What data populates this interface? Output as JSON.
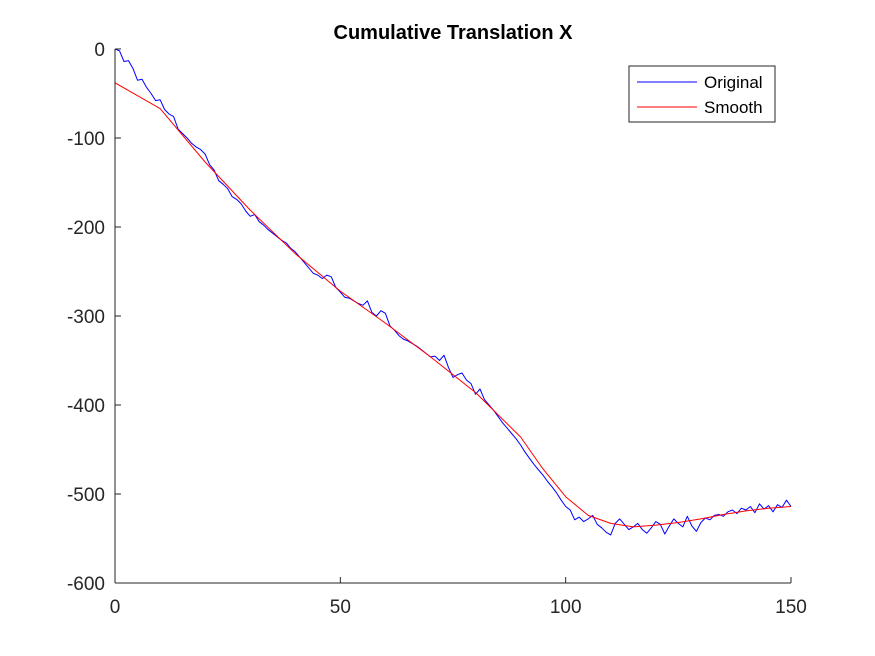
{
  "chart_data": {
    "type": "line",
    "title": "Cumulative Translation X",
    "xlabel": "",
    "ylabel": "",
    "xlim": [
      0,
      150
    ],
    "ylim": [
      -600,
      0
    ],
    "xticks": [
      0,
      50,
      100,
      150
    ],
    "yticks": [
      0,
      -100,
      -200,
      -300,
      -400,
      -500,
      -600
    ],
    "grid": false,
    "legend_location": "top-right",
    "series": [
      {
        "name": "Original",
        "color": "#0000ff",
        "x": [
          0,
          1,
          2,
          3,
          4,
          5,
          6,
          7,
          8,
          9,
          10,
          11,
          12,
          13,
          14,
          15,
          16,
          17,
          18,
          19,
          20,
          21,
          22,
          23,
          24,
          25,
          26,
          27,
          28,
          29,
          30,
          31,
          32,
          33,
          34,
          35,
          36,
          37,
          38,
          39,
          40,
          41,
          42,
          43,
          44,
          45,
          46,
          47,
          48,
          49,
          50,
          51,
          52,
          53,
          54,
          55,
          56,
          57,
          58,
          59,
          60,
          61,
          62,
          63,
          64,
          65,
          66,
          67,
          68,
          69,
          70,
          71,
          72,
          73,
          74,
          75,
          76,
          77,
          78,
          79,
          80,
          81,
          82,
          83,
          84,
          85,
          86,
          87,
          88,
          89,
          90,
          91,
          92,
          93,
          94,
          95,
          96,
          97,
          98,
          99,
          100,
          101,
          102,
          103,
          104,
          105,
          106,
          107,
          108,
          109,
          110,
          111,
          112,
          113,
          114,
          115,
          116,
          117,
          118,
          119,
          120,
          121,
          122,
          123,
          124,
          125,
          126,
          127,
          128,
          129,
          130,
          131,
          132,
          133,
          134,
          135,
          136,
          137,
          138,
          139,
          140,
          141,
          142,
          143,
          144,
          145,
          146,
          147,
          148,
          149,
          150
        ],
        "y": [
          0,
          -2,
          -14,
          -13,
          -22,
          -35,
          -34,
          -43,
          -50,
          -58,
          -57,
          -68,
          -73,
          -76,
          -90,
          -95,
          -100,
          -106,
          -110,
          -113,
          -118,
          -130,
          -136,
          -148,
          -152,
          -157,
          -166,
          -169,
          -174,
          -182,
          -188,
          -186,
          -194,
          -198,
          -203,
          -207,
          -211,
          -215,
          -218,
          -224,
          -228,
          -234,
          -240,
          -246,
          -252,
          -254,
          -258,
          -254,
          -256,
          -268,
          -273,
          -279,
          -280,
          -283,
          -286,
          -288,
          -283,
          -296,
          -300,
          -294,
          -297,
          -311,
          -316,
          -322,
          -326,
          -328,
          -331,
          -334,
          -338,
          -342,
          -346,
          -345,
          -350,
          -344,
          -358,
          -369,
          -366,
          -364,
          -372,
          -376,
          -388,
          -382,
          -394,
          -400,
          -406,
          -413,
          -420,
          -426,
          -432,
          -438,
          -445,
          -453,
          -460,
          -467,
          -473,
          -479,
          -486,
          -492,
          -499,
          -507,
          -514,
          -518,
          -529,
          -526,
          -531,
          -528,
          -524,
          -534,
          -538,
          -543,
          -546,
          -533,
          -528,
          -534,
          -540,
          -537,
          -533,
          -540,
          -544,
          -538,
          -531,
          -534,
          -545,
          -536,
          -528,
          -533,
          -537,
          -525,
          -536,
          -542,
          -532,
          -527,
          -529,
          -524,
          -523,
          -525,
          -520,
          -518,
          -522,
          -516,
          -518,
          -514,
          -521,
          -511,
          -517,
          -513,
          -520,
          -512,
          -515,
          -507,
          -514
        ]
      },
      {
        "name": "Smooth",
        "color": "#ff0000",
        "x": [
          0,
          10,
          20,
          30,
          40,
          50,
          60,
          70,
          80,
          90,
          95,
          100,
          105,
          110,
          115,
          120,
          125,
          130,
          135,
          140,
          145,
          150
        ],
        "y": [
          -38,
          -67,
          -127,
          -181,
          -230,
          -272,
          -308,
          -346,
          -386,
          -436,
          -472,
          -503,
          -524,
          -533,
          -537,
          -535,
          -532,
          -528,
          -523,
          -519,
          -516,
          -514
        ]
      }
    ]
  }
}
